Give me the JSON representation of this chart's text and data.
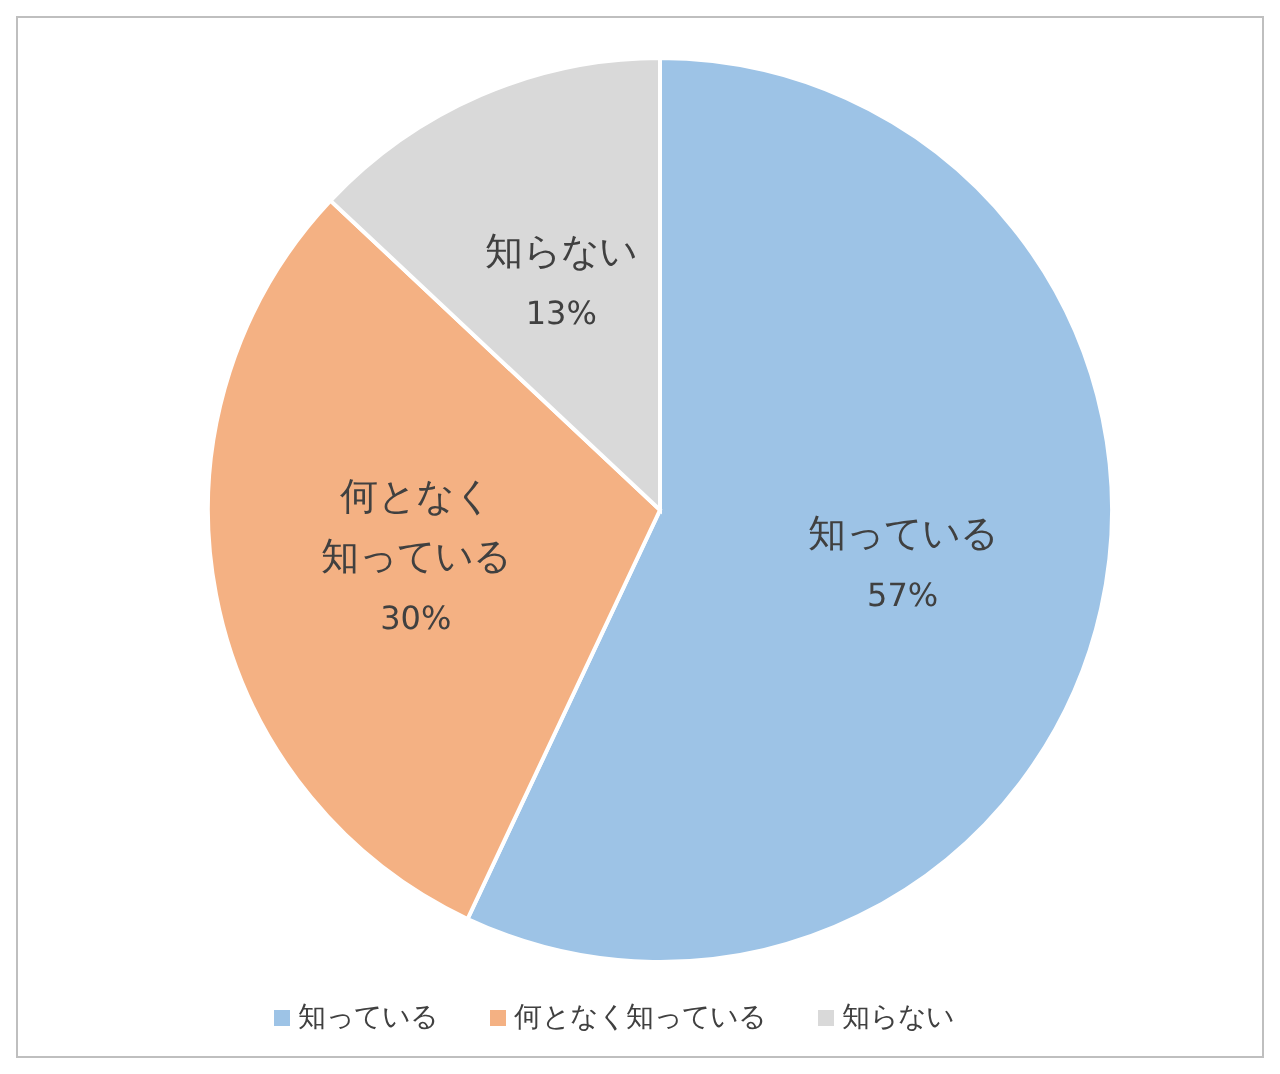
{
  "chart_data": {
    "type": "pie",
    "categories": [
      "知っている",
      "何となく知っている",
      "知らない"
    ],
    "values": [
      57,
      30,
      13
    ],
    "colors": [
      "#9dc3e6",
      "#f4b183",
      "#d9d9d9"
    ],
    "value_labels": [
      "57%",
      "30%",
      "13%"
    ],
    "legend": "bottom"
  }
}
